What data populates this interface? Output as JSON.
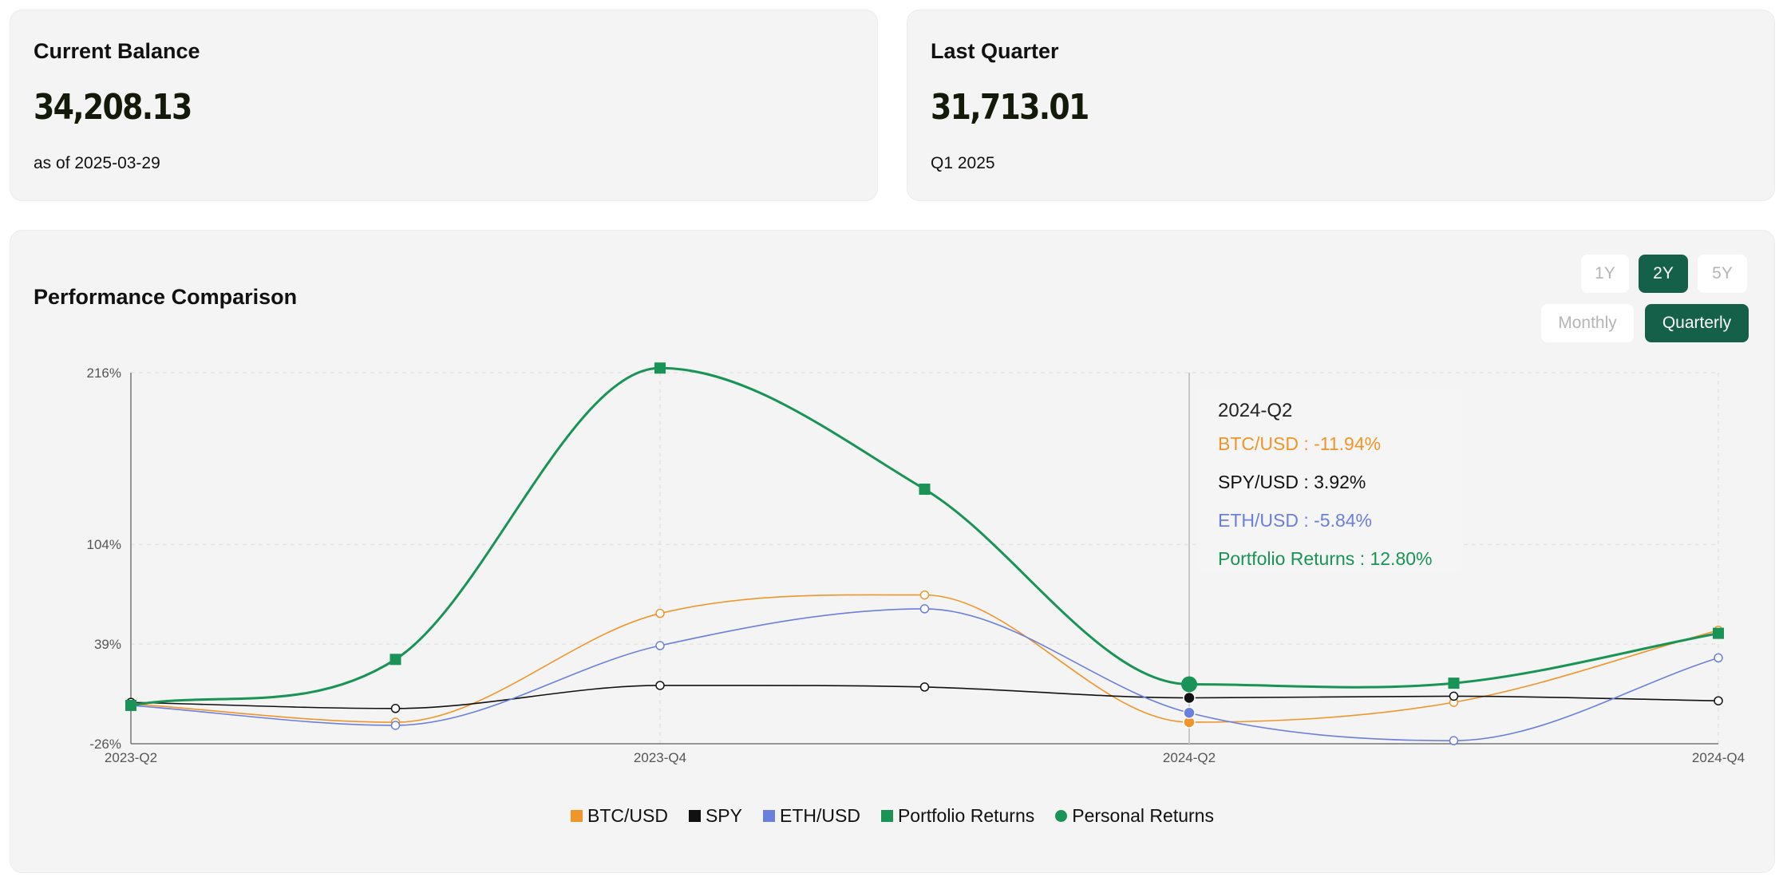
{
  "balance_card": {
    "title": "Current Balance",
    "value": "34,208.13",
    "subtitle": "as of 2025-03-29"
  },
  "quarter_card": {
    "title": "Last Quarter",
    "value": "31,713.01",
    "subtitle": "Q1 2025"
  },
  "chart_panel": {
    "title": "Performance Comparison",
    "range_buttons": [
      {
        "label": "1Y",
        "active": false
      },
      {
        "label": "2Y",
        "active": true
      },
      {
        "label": "5Y",
        "active": false
      }
    ],
    "interval_buttons": [
      {
        "label": "Monthly",
        "active": false
      },
      {
        "label": "Quarterly",
        "active": true
      }
    ]
  },
  "tooltip": {
    "title": "2024-Q2",
    "rows": [
      {
        "label": "BTC/USD : -11.94%",
        "color": "#f0952a"
      },
      {
        "label": "SPY/USD : 3.92%",
        "color": "#111111"
      },
      {
        "label": "ETH/USD : -5.84%",
        "color": "#6b7fdc"
      },
      {
        "label": "Portfolio Returns : 12.80%",
        "color": "#1a9356"
      }
    ]
  },
  "chart_data": {
    "type": "line",
    "title": "Performance Comparison",
    "x": [
      "2023-Q2",
      "2023-Q3",
      "2023-Q4",
      "2024-Q1",
      "2024-Q2",
      "2024-Q3",
      "2024-Q4"
    ],
    "x_tick_labels": [
      "2023-Q2",
      "2023-Q4",
      "2024-Q2",
      "2024-Q4"
    ],
    "y_ticks": [
      216,
      104,
      39,
      -26
    ],
    "y_tick_labels": [
      "216%",
      "104%",
      "39%",
      "-26%"
    ],
    "ylim": [
      -26,
      216
    ],
    "grid": true,
    "legend_position": "bottom",
    "highlight_x": "2024-Q2",
    "series": [
      {
        "name": "BTC/USD",
        "color": "#f0952a",
        "marker": "hollow-circle",
        "values": [
          0,
          -12,
          59,
          71,
          -11.94,
          1,
          48
        ]
      },
      {
        "name": "SPY",
        "color": "#111111",
        "marker": "hollow-circle",
        "values": [
          1,
          -3,
          12,
          11,
          3.92,
          5,
          2
        ]
      },
      {
        "name": "ETH/USD",
        "color": "#6b7fdc",
        "marker": "hollow-circle",
        "values": [
          -1,
          -14,
          38,
          62,
          -5.84,
          -24,
          30
        ]
      },
      {
        "name": "Portfolio Returns",
        "color": "#1a9356",
        "marker": "square",
        "values": [
          -1,
          29,
          219,
          140,
          12.8,
          13.5,
          46
        ]
      }
    ],
    "legend": [
      {
        "name": "BTC/USD",
        "color": "#f0952a",
        "shape": "square"
      },
      {
        "name": "SPY",
        "color": "#111111",
        "shape": "square"
      },
      {
        "name": "ETH/USD",
        "color": "#6b7fdc",
        "shape": "square"
      },
      {
        "name": "Portfolio Returns",
        "color": "#1a9356",
        "shape": "square"
      },
      {
        "name": "Personal Returns",
        "color": "#1a9356",
        "shape": "circle"
      }
    ]
  }
}
